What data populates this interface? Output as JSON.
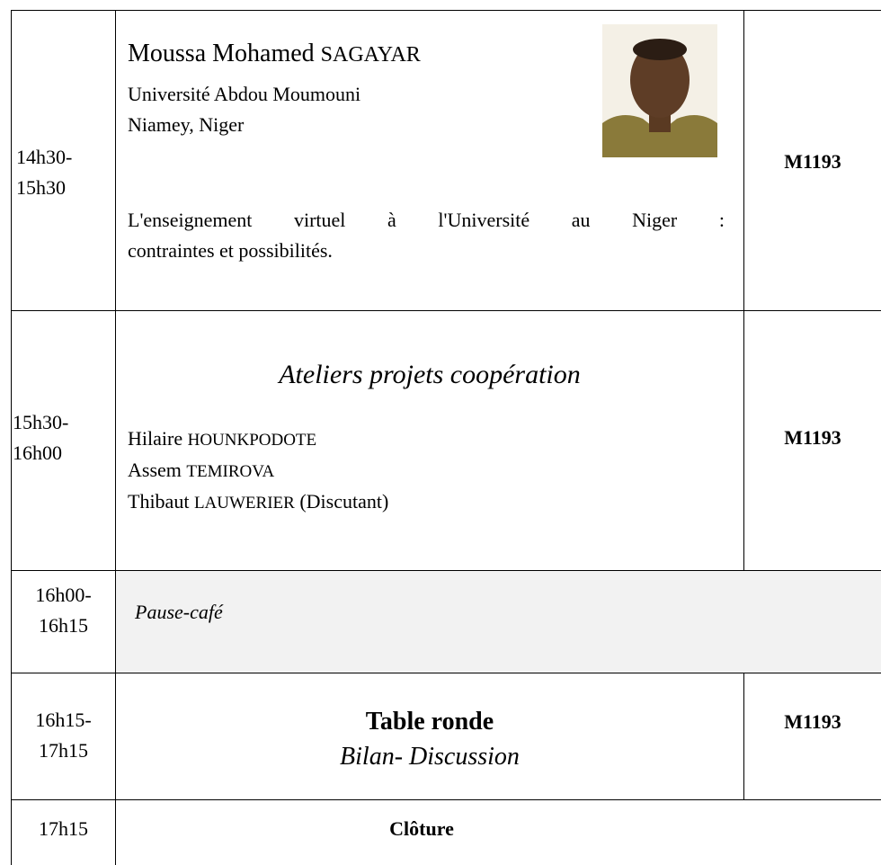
{
  "rows": [
    {
      "time": [
        "14h30-",
        "15h30"
      ],
      "speaker": {
        "first_name": "Moussa Mohamed",
        "surname": "SAGAYAR",
        "affiliation": [
          "Université Abdou Moumouni",
          "Niamey, Niger"
        ]
      },
      "talk": [
        "L'enseignement virtuel à l'Université au Niger :",
        "contraintes et possibilités."
      ],
      "room": "M1193"
    },
    {
      "time": [
        "15h30-",
        "16h00"
      ],
      "title": "Ateliers projets coopération",
      "people": [
        {
          "first_name": "Hilaire",
          "surname": "HOUNKPODOTE"
        },
        {
          "first_name": "Assem",
          "surname": "TEMIROVA"
        },
        {
          "first_name": "Thibaut",
          "surname": "LAUWERIER",
          "role": "(Discutant)"
        }
      ],
      "room": "M1193"
    },
    {
      "time": [
        "16h00-",
        "16h15"
      ],
      "title": "Pause-café"
    },
    {
      "time": [
        "16h15-",
        "17h15"
      ],
      "title": "Table ronde",
      "subtitle": "Bilan- Discussion",
      "room": "M1193"
    },
    {
      "time": [
        "17h15"
      ],
      "title": "Clôture"
    }
  ]
}
